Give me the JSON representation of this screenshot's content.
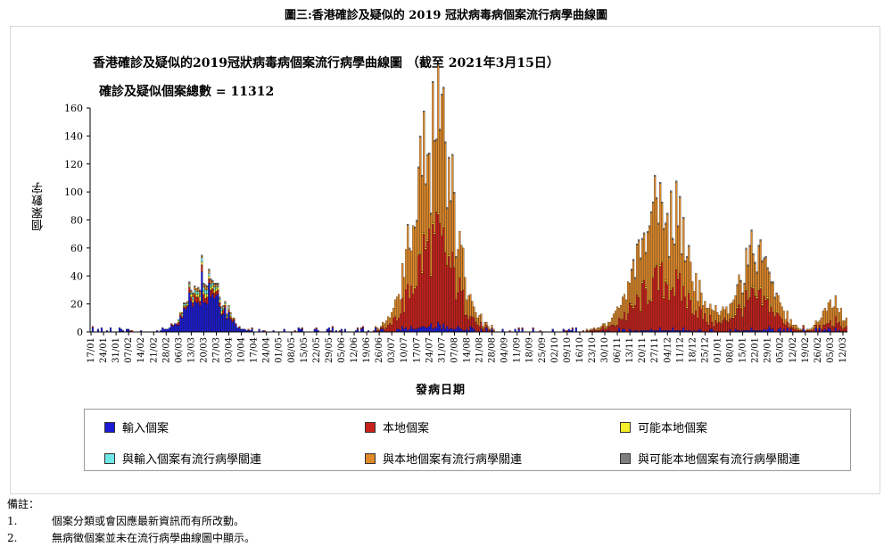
{
  "figure_title": "圖三:香港確診及疑似的 2019 冠狀病毒病個案流行病學曲線圖",
  "notes": {
    "heading": "備註：",
    "items": [
      {
        "num": "1.",
        "text": "個案分類或會因應最新資訊而有所改動。"
      },
      {
        "num": "2.",
        "text": "無病徵個案並未在流行病學曲線圖中顯示。"
      }
    ]
  },
  "chart_data": {
    "type": "bar",
    "stacked": true,
    "title": "香港確診及疑似的2019冠狀病毒病個案流行病學曲線圖 （截至 2021年3月15日）",
    "subtitle": "確診及疑似個案總數 = 11312",
    "xlabel": "發病日期",
    "ylabel": "個案數字",
    "ylim": [
      0,
      160
    ],
    "yticks": [
      0,
      20,
      40,
      60,
      80,
      100,
      120,
      140,
      160
    ],
    "x_start": "2020-01-17",
    "x_end": "2021-03-14",
    "xtick_labels": [
      "17/01",
      "24/01",
      "31/01",
      "07/02",
      "14/02",
      "21/02",
      "28/02",
      "06/03",
      "13/03",
      "20/03",
      "27/03",
      "03/04",
      "10/04",
      "17/04",
      "24/04",
      "01/05",
      "08/05",
      "15/05",
      "22/05",
      "29/05",
      "05/06",
      "12/06",
      "19/06",
      "26/06",
      "03/07",
      "10/07",
      "17/07",
      "24/07",
      "31/07",
      "07/08",
      "14/08",
      "21/08",
      "28/08",
      "04/09",
      "11/09",
      "18/09",
      "25/09",
      "02/10",
      "09/10",
      "16/10",
      "23/10",
      "30/10",
      "06/11",
      "13/11",
      "20/11",
      "27/11",
      "04/12",
      "11/12",
      "18/12",
      "25/12",
      "01/01",
      "08/01",
      "15/01",
      "22/01",
      "29/01",
      "05/02",
      "12/02",
      "19/02",
      "26/02",
      "05/03",
      "12/03"
    ],
    "legend_position": "bottom",
    "series": [
      {
        "name": "輸入個案",
        "color": "#1a1ad6",
        "kind": "imported"
      },
      {
        "name": "本地個案",
        "color": "#c8201a",
        "kind": "local"
      },
      {
        "name": "可能本地個案",
        "color": "#f5f02a",
        "kind": "possible"
      },
      {
        "name": "與輸入個案有流行病學關連",
        "color": "#6fe8e6",
        "kind": "epi_imported"
      },
      {
        "name": "與本地個案有流行病學關連",
        "color": "#e08a2a",
        "kind": "epi_local"
      },
      {
        "name": "與可能本地個案有流行病學關連",
        "color": "#7f7f7f",
        "kind": "epi_possible"
      }
    ],
    "waves": [
      {
        "peak": "2020-03-21",
        "spread_days": 9,
        "imported_peak": 33,
        "local_peak": 4,
        "possible_peak": 2,
        "epi_imported_peak": 2,
        "epi_local_peak": 2,
        "epi_possible_peak": 1
      },
      {
        "peak": "2020-07-27",
        "spread_days": 11,
        "imported_peak": 3,
        "local_peak": 60,
        "possible_peak": 1,
        "epi_imported_peak": 0,
        "epi_local_peak": 75,
        "epi_possible_peak": 1
      },
      {
        "peak": "2020-12-02",
        "spread_days": 14,
        "imported_peak": 1,
        "local_peak": 35,
        "possible_peak": 1,
        "epi_imported_peak": 0,
        "epi_local_peak": 50,
        "epi_possible_peak": 1
      },
      {
        "peak": "2021-01-22",
        "spread_days": 10,
        "imported_peak": 1,
        "local_peak": 22,
        "possible_peak": 1,
        "epi_imported_peak": 0,
        "epi_local_peak": 28,
        "epi_possible_peak": 1
      },
      {
        "peak": "2021-03-07",
        "spread_days": 6,
        "imported_peak": 0,
        "local_peak": 5,
        "possible_peak": 0,
        "epi_imported_peak": 0,
        "epi_local_peak": 12,
        "epi_possible_peak": 0
      }
    ],
    "peak_day": {
      "date": "2020-07-27",
      "total": 137
    }
  }
}
